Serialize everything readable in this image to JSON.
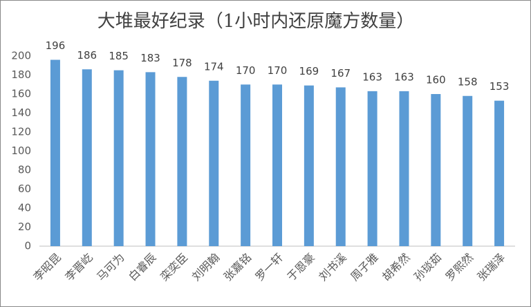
{
  "chart_data": {
    "type": "bar",
    "title": "大堆最好纪录（1小时内还原魔方数量）",
    "categories": [
      "李昭昆",
      "李晋屹",
      "马可为",
      "白睿辰",
      "栾奕臣",
      "刘明翰",
      "张嘉铭",
      "罗一轩",
      "于恩豪",
      "刘书溪",
      "周子雅",
      "胡希然",
      "孙琰茹",
      "罗熙然",
      "张瑞泽"
    ],
    "values": [
      196,
      186,
      185,
      183,
      178,
      174,
      170,
      170,
      169,
      167,
      163,
      163,
      160,
      158,
      153
    ],
    "color": "#5b9bd5",
    "ylim": [
      0,
      200
    ],
    "yticks": [
      0,
      20,
      40,
      60,
      80,
      100,
      120,
      140,
      160,
      180,
      200
    ],
    "grid": false
  }
}
